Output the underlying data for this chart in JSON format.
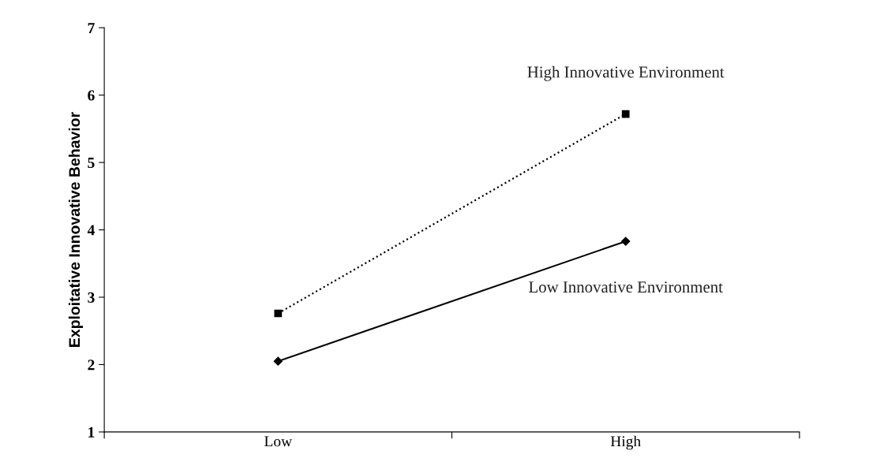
{
  "chart_data": {
    "type": "line",
    "ylabel": "Exploitative Innovative Behavior",
    "categories": [
      "Low",
      "High"
    ],
    "ylim": [
      1,
      7
    ],
    "yticks": [
      1,
      2,
      3,
      4,
      5,
      6,
      7
    ],
    "grid": false,
    "legend": false,
    "series": [
      {
        "name": "High Innovative Environment",
        "color": "#000000",
        "values": [
          2.76,
          5.72
        ],
        "marker": "square",
        "line_style": "dotted"
      },
      {
        "name": "Low Innovative Environment",
        "color": "#000000",
        "values": [
          2.05,
          3.83
        ],
        "marker": "diamond",
        "line_style": "solid"
      }
    ]
  }
}
